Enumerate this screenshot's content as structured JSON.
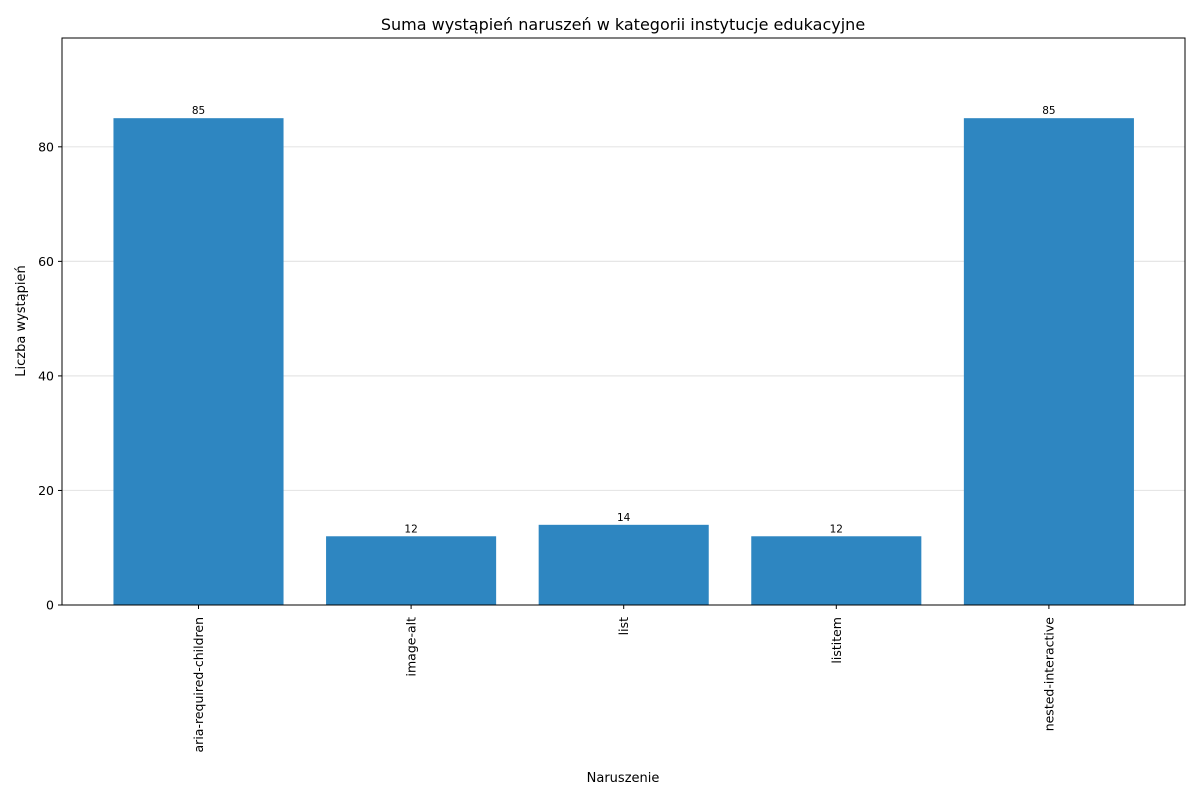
{
  "chart_data": {
    "type": "bar",
    "title": "Suma wystąpień naruszeń w kategorii instytucje edukacyjne",
    "xlabel": "Naruszenie",
    "ylabel": "Liczba wystąpień",
    "categories": [
      "aria-required-children",
      "image-alt",
      "list",
      "listitem",
      "nested-interactive"
    ],
    "values": [
      85,
      12,
      14,
      12,
      85
    ],
    "ylim": [
      0,
      99
    ],
    "yticks": [
      0,
      20,
      40,
      60,
      80
    ],
    "grid": "y",
    "bar_color": "#2e86c1",
    "data_labels": true
  }
}
